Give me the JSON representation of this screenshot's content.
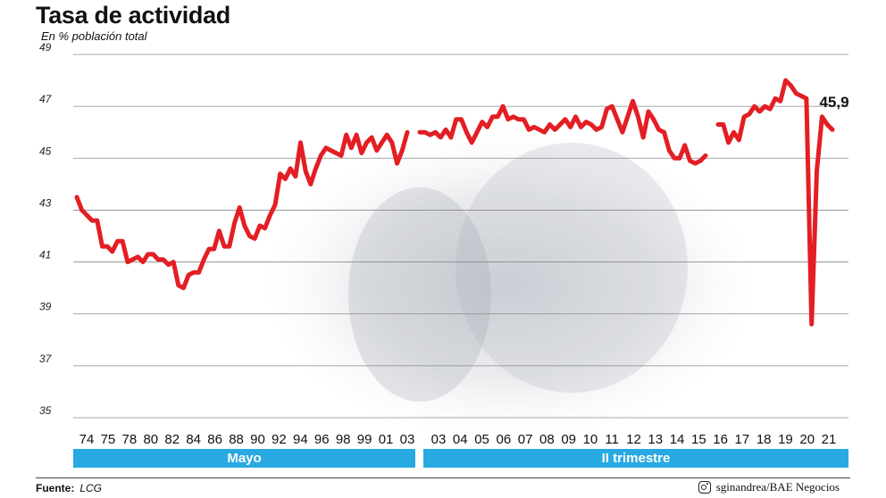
{
  "chart_data": {
    "type": "line",
    "title": "Tasa de actividad",
    "subtitle": "En % población total",
    "ylim": [
      35,
      49
    ],
    "yticks": [
      35,
      37,
      39,
      41,
      43,
      45,
      47,
      49
    ],
    "grid": true,
    "line_color": "#e31e24",
    "band_color": "#29a9e1",
    "xticks_mayo": [
      "74",
      "75",
      "78",
      "80",
      "82",
      "84",
      "86",
      "88",
      "90",
      "92",
      "94",
      "96",
      "98",
      "99",
      "01",
      "03"
    ],
    "xticks_trimestre": [
      "03",
      "04",
      "05",
      "06",
      "07",
      "08",
      "09",
      "10",
      "11",
      "12",
      "13",
      "14",
      "15",
      "16",
      "17",
      "18",
      "19",
      "20",
      "21"
    ],
    "bands": [
      {
        "label": "Mayo"
      },
      {
        "label": "II trimestre"
      }
    ],
    "series": [
      {
        "period": "Mayo",
        "values": [
          43.5,
          43.0,
          42.8,
          42.6,
          42.6,
          41.6,
          41.6,
          41.4,
          41.8,
          41.8,
          41.0,
          41.1,
          41.2,
          41.0,
          41.3,
          41.3,
          41.1,
          41.1,
          40.9,
          41.0,
          40.1,
          40.0,
          40.5,
          40.6,
          40.6,
          41.1,
          41.5,
          41.5,
          42.2,
          41.6,
          41.6,
          42.5,
          43.1,
          42.4,
          42.0,
          41.9,
          42.4,
          42.3,
          42.8,
          43.2,
          44.4,
          44.2,
          44.6,
          44.3,
          45.6,
          44.5,
          44.0,
          44.6,
          45.1,
          45.4,
          45.3,
          45.2,
          45.1,
          45.9,
          45.4,
          45.9,
          45.2,
          45.6,
          45.8,
          45.3,
          45.6,
          45.9,
          45.6,
          44.8,
          45.3,
          46.0
        ]
      },
      {
        "period": "II trimestre",
        "values": [
          46.0,
          46.0,
          45.9,
          46.0,
          45.8,
          46.1,
          45.8,
          46.5,
          46.5,
          46.0,
          45.6,
          46.0,
          46.4,
          46.2,
          46.6,
          46.6,
          47.0,
          46.5,
          46.6,
          46.5,
          46.5,
          46.1,
          46.2,
          46.1,
          46.0,
          46.3,
          46.1,
          46.3,
          46.5,
          46.2,
          46.6,
          46.2,
          46.4,
          46.3,
          46.1,
          46.2,
          46.9,
          47.0,
          46.5,
          46.0,
          46.6,
          47.2,
          46.6,
          45.8,
          46.8,
          46.5,
          46.1,
          46.0,
          45.3,
          45.0,
          45.0,
          45.5,
          44.9,
          44.8,
          44.9,
          45.1
        ]
      },
      {
        "period": "II trimestre",
        "values": [
          46.3,
          46.3,
          45.6,
          46.0,
          45.7,
          46.6,
          46.7,
          47.0,
          46.8,
          47.0,
          46.9,
          47.3,
          47.2,
          48.0,
          47.8,
          47.5,
          47.4,
          47.3,
          38.6,
          44.5,
          46.6,
          46.3,
          46.1
        ]
      }
    ],
    "annotations": [
      {
        "text": "45,9"
      }
    ]
  },
  "footer": {
    "source_label": "Fuente:",
    "source_value": "LCG",
    "credit": "sginandrea/BAE Negocios"
  }
}
